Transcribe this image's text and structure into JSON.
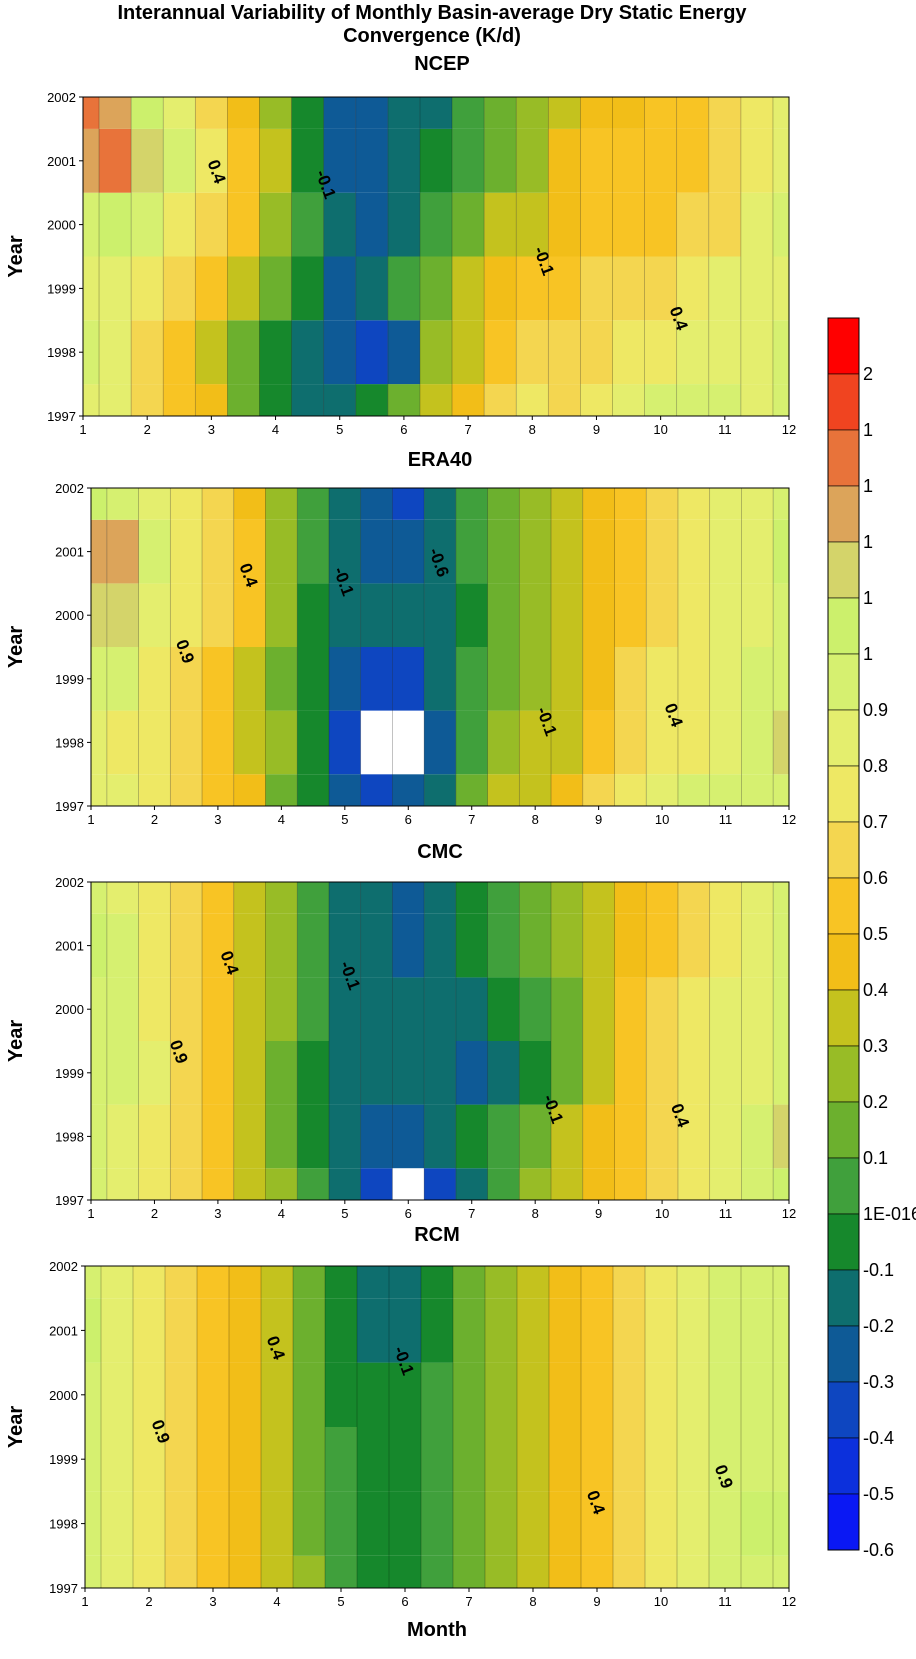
{
  "title_line1": "Interannual Variability of Monthly Basin-average Dry Static Energy",
  "title_line2": "Convergence (K/d)",
  "colorbar": {
    "labels": [
      "2",
      "1",
      "1",
      "1",
      "1",
      "1",
      "0.9",
      "0.8",
      "0.7",
      "0.6",
      "0.5",
      "0.4",
      "0.3",
      "0.2",
      "0.1",
      "1E-016",
      "-0.1",
      "-0.2",
      "-0.3",
      "-0.4",
      "-0.5",
      "-0.6"
    ],
    "colors": [
      "#ff0000",
      "#f04420",
      "#e8733a",
      "#dca45a",
      "#d4d46a",
      "#ccf06c",
      "#d6f070",
      "#e4ee6e",
      "#eee864",
      "#f4d650",
      "#f8c424",
      "#f2be18",
      "#c4c21e",
      "#98bc26",
      "#6cb02e",
      "#40a03c",
      "#16882c",
      "#0e6e6e",
      "#0e5a96",
      "#0e46c0",
      "#0c30dc",
      "#0a18f4"
    ]
  },
  "chart_data": [
    {
      "type": "heatmap",
      "title": "NCEP",
      "xlabel": "",
      "ylabel": "Year",
      "x_ticks": [
        1,
        2,
        3,
        4,
        5,
        6,
        7,
        8,
        9,
        10,
        11,
        12
      ],
      "y_ticks": [
        1997,
        1998,
        1999,
        2000,
        2001,
        2002
      ],
      "xlim": [
        1,
        12
      ],
      "ylim": [
        1997,
        2002
      ],
      "contour_labels": [
        {
          "text": "0.4",
          "x": 3.0,
          "y": 2000.8
        },
        {
          "text": "-0.1",
          "x": 4.7,
          "y": 2000.6
        },
        {
          "text": "-0.1",
          "x": 8.1,
          "y": 1999.4
        },
        {
          "text": "0.4",
          "x": 10.2,
          "y": 1998.5
        }
      ],
      "grid": [
        [
          0.8,
          0.8,
          0.6,
          0.5,
          0.4,
          0.1,
          -0.1,
          -0.2,
          -0.2,
          -0.1,
          0.1,
          0.3,
          0.4,
          0.6,
          0.7,
          0.6,
          0.7,
          0.8,
          0.9,
          0.9,
          0.9,
          0.8,
          0.9
        ],
        [
          0.9,
          0.8,
          0.6,
          0.5,
          0.3,
          0.1,
          -0.1,
          -0.2,
          -0.3,
          -0.4,
          -0.3,
          0.2,
          0.3,
          0.5,
          0.6,
          0.6,
          0.6,
          0.7,
          0.7,
          0.8,
          0.8,
          0.8,
          0.9
        ],
        [
          0.8,
          0.8,
          0.7,
          0.6,
          0.5,
          0.3,
          0.1,
          -0.1,
          -0.3,
          -0.2,
          0.0,
          0.1,
          0.3,
          0.4,
          0.5,
          0.5,
          0.6,
          0.6,
          0.6,
          0.7,
          0.8,
          0.8,
          0.8
        ],
        [
          0.9,
          1.0,
          0.9,
          0.7,
          0.6,
          0.5,
          0.2,
          0.0,
          -0.2,
          -0.3,
          -0.2,
          0.0,
          0.1,
          0.3,
          0.3,
          0.4,
          0.5,
          0.5,
          0.5,
          0.6,
          0.6,
          0.8,
          0.9
        ],
        [
          1.2,
          1.3,
          1.1,
          0.9,
          0.7,
          0.5,
          0.3,
          -0.1,
          -0.3,
          -0.3,
          -0.2,
          -0.1,
          0.0,
          0.1,
          0.2,
          0.4,
          0.5,
          0.5,
          0.5,
          0.5,
          0.6,
          0.7,
          0.8
        ],
        [
          1.3,
          1.2,
          1.0,
          0.8,
          0.6,
          0.4,
          0.2,
          -0.1,
          -0.3,
          -0.3,
          -0.2,
          -0.2,
          0.0,
          0.1,
          0.2,
          0.3,
          0.4,
          0.4,
          0.5,
          0.5,
          0.6,
          0.7,
          0.8
        ]
      ]
    },
    {
      "type": "heatmap",
      "title": "ERA40",
      "xlabel": "",
      "ylabel": "Year",
      "x_ticks": [
        1,
        2,
        3,
        4,
        5,
        6,
        7,
        8,
        9,
        10,
        11,
        12
      ],
      "y_ticks": [
        1997,
        1998,
        1999,
        2000,
        2001,
        2002
      ],
      "xlim": [
        1,
        12
      ],
      "ylim": [
        1997,
        2002
      ],
      "contour_labels": [
        {
          "text": "0.4",
          "x": 3.4,
          "y": 2000.6
        },
        {
          "text": "-0.1",
          "x": 4.9,
          "y": 2000.5
        },
        {
          "text": "-0.6",
          "x": 6.4,
          "y": 2000.8
        },
        {
          "text": "0.9",
          "x": 2.4,
          "y": 1999.4
        },
        {
          "text": "-0.1",
          "x": 8.1,
          "y": 1998.3
        },
        {
          "text": "0.4",
          "x": 10.1,
          "y": 1998.4
        }
      ],
      "grid": [
        [
          0.8,
          0.8,
          0.7,
          0.6,
          0.5,
          0.4,
          0.1,
          -0.1,
          -0.3,
          -0.4,
          -0.3,
          -0.2,
          0.1,
          0.3,
          0.3,
          0.4,
          0.6,
          0.7,
          0.8,
          0.9,
          0.9,
          0.9,
          0.9
        ],
        [
          0.8,
          0.7,
          0.7,
          0.6,
          0.5,
          0.3,
          0.2,
          -0.1,
          -0.4,
          -0.6,
          -0.6,
          -0.3,
          0.0,
          0.2,
          0.3,
          0.3,
          0.5,
          0.6,
          0.7,
          0.7,
          0.8,
          0.9,
          1.1
        ],
        [
          0.9,
          0.9,
          0.7,
          0.6,
          0.5,
          0.3,
          0.1,
          -0.1,
          -0.3,
          -0.4,
          -0.4,
          -0.2,
          0.0,
          0.1,
          0.2,
          0.3,
          0.4,
          0.6,
          0.7,
          0.7,
          0.8,
          0.9,
          0.9
        ],
        [
          1.1,
          1.1,
          0.8,
          0.7,
          0.6,
          0.5,
          0.2,
          -0.1,
          -0.2,
          -0.2,
          -0.2,
          -0.2,
          -0.1,
          0.1,
          0.2,
          0.3,
          0.4,
          0.5,
          0.6,
          0.7,
          0.8,
          0.8,
          0.9
        ],
        [
          1.2,
          1.2,
          0.9,
          0.7,
          0.6,
          0.5,
          0.2,
          0.0,
          -0.2,
          -0.3,
          -0.3,
          -0.2,
          0.0,
          0.1,
          0.2,
          0.3,
          0.4,
          0.5,
          0.6,
          0.7,
          0.8,
          0.8,
          1.0
        ],
        [
          1.0,
          0.9,
          0.8,
          0.7,
          0.6,
          0.4,
          0.2,
          0.0,
          -0.2,
          -0.3,
          -0.4,
          -0.2,
          0.0,
          0.1,
          0.2,
          0.3,
          0.4,
          0.5,
          0.6,
          0.7,
          0.8,
          0.8,
          0.9
        ]
      ]
    },
    {
      "type": "heatmap",
      "title": "CMC",
      "xlabel": "",
      "ylabel": "Year",
      "x_ticks": [
        1,
        2,
        3,
        4,
        5,
        6,
        7,
        8,
        9,
        10,
        11,
        12
      ],
      "y_ticks": [
        1997,
        1998,
        1999,
        2000,
        2001,
        2002
      ],
      "xlim": [
        1,
        12
      ],
      "ylim": [
        1997,
        2002
      ],
      "contour_labels": [
        {
          "text": "0.4",
          "x": 3.1,
          "y": 2000.7
        },
        {
          "text": "-0.1",
          "x": 5.0,
          "y": 2000.5
        },
        {
          "text": "0.9",
          "x": 2.3,
          "y": 1999.3
        },
        {
          "text": "-0.1",
          "x": 8.2,
          "y": 1998.4
        },
        {
          "text": "0.4",
          "x": 10.2,
          "y": 1998.3
        }
      ],
      "grid": [
        [
          0.9,
          0.8,
          0.7,
          0.6,
          0.5,
          0.3,
          0.2,
          0.0,
          -0.2,
          -0.4,
          -0.6,
          -0.4,
          -0.2,
          0.0,
          0.2,
          0.3,
          0.4,
          0.5,
          0.6,
          0.7,
          0.8,
          0.9,
          1.0
        ],
        [
          0.9,
          0.8,
          0.7,
          0.6,
          0.5,
          0.3,
          0.1,
          -0.1,
          -0.2,
          -0.3,
          -0.3,
          -0.2,
          -0.1,
          0.0,
          0.1,
          0.3,
          0.4,
          0.5,
          0.6,
          0.7,
          0.8,
          0.9,
          1.1
        ],
        [
          0.9,
          0.9,
          0.8,
          0.6,
          0.5,
          0.3,
          0.1,
          -0.1,
          -0.2,
          -0.2,
          -0.2,
          -0.2,
          -0.3,
          -0.2,
          -0.1,
          0.1,
          0.3,
          0.5,
          0.6,
          0.7,
          0.8,
          0.8,
          0.9
        ],
        [
          0.9,
          0.9,
          0.7,
          0.6,
          0.5,
          0.3,
          0.2,
          0.0,
          -0.2,
          -0.2,
          -0.2,
          -0.2,
          -0.2,
          -0.1,
          0.0,
          0.1,
          0.3,
          0.5,
          0.6,
          0.7,
          0.8,
          0.8,
          0.9
        ],
        [
          1.0,
          0.9,
          0.7,
          0.6,
          0.5,
          0.3,
          0.2,
          0.0,
          -0.2,
          -0.2,
          -0.3,
          -0.2,
          -0.1,
          0.0,
          0.1,
          0.2,
          0.3,
          0.4,
          0.5,
          0.6,
          0.7,
          0.8,
          0.9
        ],
        [
          0.9,
          0.8,
          0.7,
          0.6,
          0.5,
          0.3,
          0.2,
          0.0,
          -0.2,
          -0.2,
          -0.3,
          -0.2,
          -0.1,
          0.0,
          0.1,
          0.2,
          0.3,
          0.4,
          0.5,
          0.6,
          0.7,
          0.8,
          0.9
        ]
      ]
    },
    {
      "type": "heatmap",
      "title": "RCM",
      "xlabel": "Month",
      "ylabel": "Year",
      "x_ticks": [
        1,
        2,
        3,
        4,
        5,
        6,
        7,
        8,
        9,
        10,
        11,
        12
      ],
      "y_ticks": [
        1997,
        1998,
        1999,
        2000,
        2001,
        2002
      ],
      "xlim": [
        1,
        12
      ],
      "ylim": [
        1997,
        2002
      ],
      "contour_labels": [
        {
          "text": "0.4",
          "x": 3.9,
          "y": 2000.7
        },
        {
          "text": "-0.1",
          "x": 5.9,
          "y": 2000.5
        },
        {
          "text": "0.9",
          "x": 2.1,
          "y": 1999.4
        },
        {
          "text": "0.4",
          "x": 8.9,
          "y": 1998.3
        },
        {
          "text": "0.9",
          "x": 10.9,
          "y": 1998.7
        }
      ],
      "grid": [
        [
          0.9,
          0.8,
          0.7,
          0.6,
          0.5,
          0.4,
          0.3,
          0.2,
          0.0,
          -0.1,
          -0.1,
          0.0,
          0.1,
          0.2,
          0.3,
          0.4,
          0.5,
          0.6,
          0.7,
          0.8,
          0.9,
          0.9,
          0.9
        ],
        [
          0.9,
          0.8,
          0.7,
          0.6,
          0.5,
          0.4,
          0.3,
          0.1,
          0.0,
          -0.1,
          -0.1,
          0.0,
          0.1,
          0.2,
          0.3,
          0.4,
          0.5,
          0.6,
          0.7,
          0.8,
          0.9,
          1.0,
          1.0
        ],
        [
          0.9,
          0.8,
          0.7,
          0.6,
          0.5,
          0.4,
          0.3,
          0.1,
          0.0,
          -0.1,
          -0.1,
          0.0,
          0.1,
          0.2,
          0.3,
          0.4,
          0.5,
          0.6,
          0.7,
          0.8,
          0.9,
          0.9,
          0.9
        ],
        [
          0.9,
          0.8,
          0.7,
          0.6,
          0.5,
          0.4,
          0.3,
          0.1,
          -0.1,
          -0.1,
          -0.1,
          0.0,
          0.1,
          0.2,
          0.3,
          0.4,
          0.5,
          0.6,
          0.7,
          0.8,
          0.9,
          0.9,
          0.9
        ],
        [
          1.0,
          0.8,
          0.7,
          0.6,
          0.5,
          0.4,
          0.3,
          0.1,
          -0.1,
          -0.2,
          -0.2,
          -0.1,
          0.1,
          0.2,
          0.3,
          0.4,
          0.5,
          0.6,
          0.7,
          0.8,
          0.9,
          0.9,
          0.9
        ],
        [
          0.9,
          0.8,
          0.7,
          0.6,
          0.5,
          0.4,
          0.3,
          0.1,
          -0.1,
          -0.2,
          -0.2,
          -0.1,
          0.1,
          0.2,
          0.3,
          0.4,
          0.5,
          0.6,
          0.7,
          0.8,
          0.9,
          0.9,
          0.9
        ]
      ]
    }
  ]
}
